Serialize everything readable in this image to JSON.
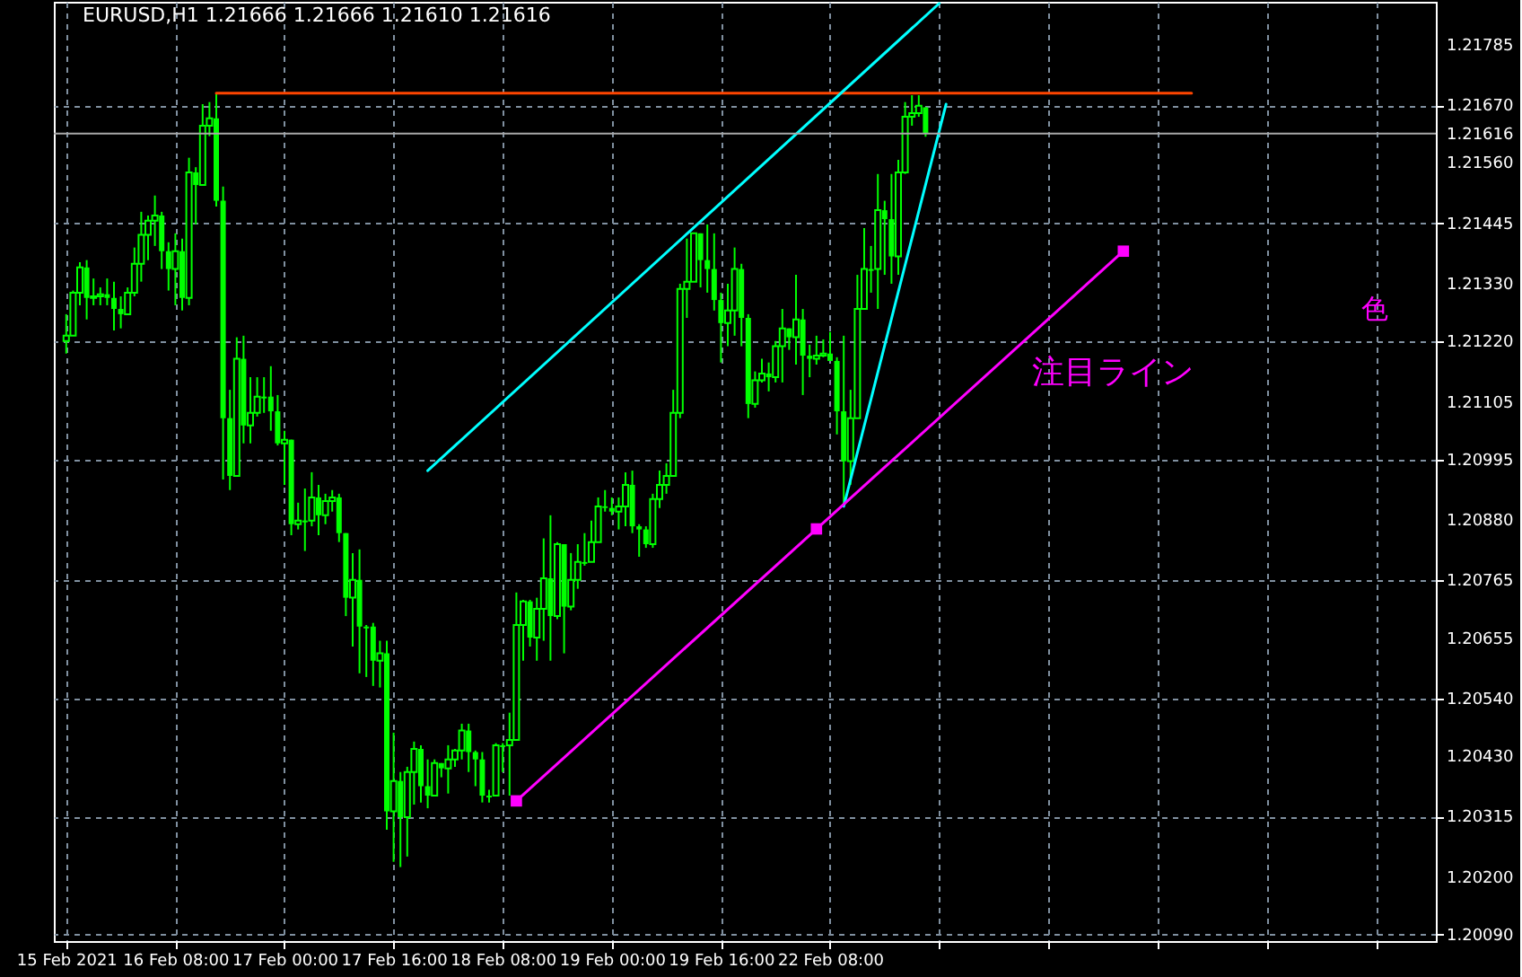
{
  "chart_data": {
    "type": "candlestick",
    "title": "EURUSD,H1  1.21666 1.21666 1.21610 1.21616",
    "color": "#00ff00",
    "categories": [
      "15 Feb 2021",
      null,
      null,
      null,
      null,
      null,
      null,
      null,
      null,
      null,
      null,
      null,
      null,
      null,
      null,
      null,
      "16 Feb 08:00",
      null,
      null,
      null,
      null,
      null,
      null,
      null,
      null,
      null,
      null,
      null,
      null,
      null,
      null,
      null,
      "17 Feb 00:00",
      null,
      null,
      null,
      null,
      null,
      null,
      null,
      null,
      null,
      null,
      null,
      null,
      null,
      null,
      null,
      "17 Feb 16:00",
      null,
      null,
      null,
      null,
      null,
      null,
      null,
      null,
      null,
      null,
      null,
      null,
      null,
      null,
      null,
      "18 Feb 08:00",
      null,
      null,
      null,
      null,
      null,
      null,
      null,
      null,
      null,
      null,
      null,
      null,
      null,
      null,
      null,
      "19 Feb 00:00",
      null,
      null,
      null,
      null,
      null,
      null,
      null,
      null,
      null,
      null,
      null,
      null,
      null,
      null,
      null,
      "19 Feb 16:00",
      null,
      null,
      null,
      null,
      null,
      null,
      null,
      null,
      null,
      null,
      null,
      null,
      null,
      null,
      null,
      "22 Feb 08:00",
      null,
      null,
      null,
      null,
      null,
      null,
      null,
      null,
      null,
      null,
      null,
      null,
      null,
      null,
      null,
      null,
      null,
      null,
      null,
      null,
      null,
      null,
      null,
      null,
      null,
      null,
      null,
      null,
      null,
      null,
      null,
      null,
      null,
      null,
      null,
      null,
      null,
      null,
      null,
      null,
      null,
      null,
      null,
      null,
      null,
      null,
      null,
      null,
      null,
      null,
      null,
      null,
      null,
      null,
      null,
      null,
      null,
      null,
      null,
      null,
      null,
      null,
      null,
      null,
      null,
      null,
      null,
      null,
      null,
      null,
      null,
      null,
      null,
      null,
      null,
      null,
      null,
      null,
      null,
      null,
      null,
      null,
      null,
      null,
      null,
      null,
      null
    ],
    "ohlc": [
      [
        1.21221,
        1.21272,
        1.21197,
        1.21231
      ],
      [
        1.21231,
        1.21317,
        1.21231,
        1.21313
      ],
      [
        1.21313,
        1.21371,
        1.21289,
        1.21361
      ],
      [
        1.21361,
        1.21375,
        1.21262,
        1.21303
      ],
      [
        1.21303,
        1.2134,
        1.21289,
        1.21306
      ],
      [
        1.21306,
        1.21323,
        1.21289,
        1.2131
      ],
      [
        1.2131,
        1.2134,
        1.21289,
        1.21303
      ],
      [
        1.21303,
        1.21334,
        1.21241,
        1.21282
      ],
      [
        1.21282,
        1.21306,
        1.21245,
        1.21272
      ],
      [
        1.21272,
        1.21323,
        1.21272,
        1.21313
      ],
      [
        1.21313,
        1.21399,
        1.21306,
        1.21368
      ],
      [
        1.21368,
        1.21467,
        1.21334,
        1.21423
      ],
      [
        1.21423,
        1.2146,
        1.21375,
        1.2145
      ],
      [
        1.2145,
        1.21498,
        1.21402,
        1.2146
      ],
      [
        1.2146,
        1.21467,
        1.21358,
        1.21392
      ],
      [
        1.21392,
        1.21409,
        1.21317,
        1.21358
      ],
      [
        1.21358,
        1.21426,
        1.21289,
        1.21392
      ],
      [
        1.21392,
        1.21416,
        1.21279,
        1.21303
      ],
      [
        1.21303,
        1.2157,
        1.21289,
        1.21542
      ],
      [
        1.21542,
        1.21552,
        1.21443,
        1.21518
      ],
      [
        1.21518,
        1.21672,
        1.21518,
        1.21631
      ],
      [
        1.21631,
        1.21676,
        1.21611,
        1.21645
      ],
      [
        1.21645,
        1.21693,
        1.21477,
        1.21488
      ],
      [
        1.21488,
        1.21515,
        1.20957,
        1.21074
      ],
      [
        1.21074,
        1.21128,
        1.20937,
        1.20964
      ],
      [
        1.20964,
        1.21228,
        1.20964,
        1.21187
      ],
      [
        1.21187,
        1.21231,
        1.21026,
        1.2106
      ],
      [
        1.2106,
        1.21152,
        1.21026,
        1.21084
      ],
      [
        1.21084,
        1.21152,
        1.21077,
        1.21115
      ],
      [
        1.21115,
        1.21152,
        1.21084,
        1.21115
      ],
      [
        1.21115,
        1.21173,
        1.2105,
        1.21087
      ],
      [
        1.21087,
        1.21118,
        1.21022,
        1.21026
      ],
      [
        1.21026,
        1.2105,
        1.20947,
        1.21033
      ],
      [
        1.21033,
        1.21033,
        1.20851,
        1.20872
      ],
      [
        1.20872,
        1.20913,
        1.20862,
        1.20879
      ],
      [
        1.20879,
        1.2094,
        1.20821,
        1.20879
      ],
      [
        1.20879,
        1.20971,
        1.20868,
        1.20923
      ],
      [
        1.20923,
        1.20947,
        1.20851,
        1.20889
      ],
      [
        1.20889,
        1.2093,
        1.20872,
        1.20916
      ],
      [
        1.20916,
        1.20937,
        1.20896,
        1.20923
      ],
      [
        1.20923,
        1.2093,
        1.20838,
        1.20855
      ],
      [
        1.20855,
        1.20855,
        1.20697,
        1.20732
      ],
      [
        1.20732,
        1.20817,
        1.20639,
        1.20766
      ],
      [
        1.20766,
        1.20824,
        1.20588,
        1.20677
      ],
      [
        1.20677,
        1.2068,
        1.20581,
        1.20677
      ],
      [
        1.20677,
        1.20684,
        1.20564,
        1.20612
      ],
      [
        1.20612,
        1.2065,
        1.20561,
        1.20626
      ],
      [
        1.20626,
        1.2065,
        1.2029,
        1.20325
      ],
      [
        1.20325,
        1.20475,
        1.20229,
        1.20383
      ],
      [
        1.20383,
        1.204,
        1.20219,
        1.20314
      ],
      [
        1.20314,
        1.2041,
        1.20239,
        1.204
      ],
      [
        1.204,
        1.20458,
        1.20338,
        1.20444
      ],
      [
        1.20444,
        1.20451,
        1.20342,
        1.20373
      ],
      [
        1.20373,
        1.20424,
        1.20331,
        1.20355
      ],
      [
        1.20355,
        1.20424,
        1.20355,
        1.20417
      ],
      [
        1.20417,
        1.20417,
        1.2039,
        1.20407
      ],
      [
        1.20407,
        1.20451,
        1.20359,
        1.20424
      ],
      [
        1.20424,
        1.20444,
        1.2041,
        1.20441
      ],
      [
        1.20441,
        1.20492,
        1.20424,
        1.20479
      ],
      [
        1.20479,
        1.20492,
        1.204,
        1.20438
      ],
      [
        1.20438,
        1.20441,
        1.20373,
        1.20424
      ],
      [
        1.20424,
        1.20438,
        1.20342,
        1.20355
      ],
      [
        1.20355,
        1.20366,
        1.20342,
        1.20355
      ],
      [
        1.20355,
        1.20455,
        1.20355,
        1.20451
      ],
      [
        1.20451,
        1.20455,
        1.204,
        1.20451
      ],
      [
        1.20451,
        1.20513,
        1.20355,
        1.20461
      ],
      [
        1.20461,
        1.20742,
        1.20461,
        1.2068
      ],
      [
        1.2068,
        1.20728,
        1.20612,
        1.20725
      ],
      [
        1.20725,
        1.20728,
        1.20639,
        1.20656
      ],
      [
        1.20656,
        1.20732,
        1.20612,
        1.20711
      ],
      [
        1.20711,
        1.20845,
        1.2065,
        1.20769
      ],
      [
        1.20769,
        1.20889,
        1.20612,
        1.20697
      ],
      [
        1.20697,
        1.20838,
        1.20691,
        1.20834
      ],
      [
        1.20834,
        1.20834,
        1.20626,
        1.20715
      ],
      [
        1.20715,
        1.20817,
        1.20708,
        1.20766
      ],
      [
        1.20766,
        1.20834,
        1.20749,
        1.208
      ],
      [
        1.208,
        1.20855,
        1.20793,
        1.208
      ],
      [
        1.208,
        1.20879,
        1.208,
        1.20838
      ],
      [
        1.20838,
        1.20923,
        1.20838,
        1.20906
      ],
      [
        1.20906,
        1.20937,
        1.20896,
        1.20903
      ],
      [
        1.20903,
        1.20923,
        1.20889,
        1.20896
      ],
      [
        1.20896,
        1.20923,
        1.20862,
        1.20906
      ],
      [
        1.20906,
        1.20971,
        1.20868,
        1.20947
      ],
      [
        1.20947,
        1.20974,
        1.20855,
        1.20868
      ],
      [
        1.20868,
        1.20872,
        1.2081,
        1.20862
      ],
      [
        1.20862,
        1.20868,
        1.20827,
        1.20834
      ],
      [
        1.20834,
        1.2093,
        1.20827,
        1.2092
      ],
      [
        1.2092,
        1.20974,
        1.20903,
        1.20947
      ],
      [
        1.20947,
        1.20988,
        1.2093,
        1.20964
      ],
      [
        1.20964,
        1.21128,
        1.20964,
        1.21084
      ],
      [
        1.21084,
        1.2133,
        1.21074,
        1.2132
      ],
      [
        1.2132,
        1.21416,
        1.21265,
        1.21334
      ],
      [
        1.21334,
        1.21426,
        1.21334,
        1.21426
      ],
      [
        1.21426,
        1.21426,
        1.21323,
        1.21375
      ],
      [
        1.21375,
        1.21443,
        1.21313,
        1.21358
      ],
      [
        1.21358,
        1.21426,
        1.21279,
        1.21299
      ],
      [
        1.21299,
        1.21313,
        1.2118,
        1.21255
      ],
      [
        1.21255,
        1.2133,
        1.21211,
        1.21279
      ],
      [
        1.21279,
        1.21399,
        1.21231,
        1.21358
      ],
      [
        1.21358,
        1.21368,
        1.21211,
        1.21265
      ],
      [
        1.21265,
        1.21272,
        1.21074,
        1.21101
      ],
      [
        1.21101,
        1.21163,
        1.21094,
        1.21146
      ],
      [
        1.21146,
        1.21187,
        1.21142,
        1.21159
      ],
      [
        1.21159,
        1.2118,
        1.21125,
        1.21152
      ],
      [
        1.21152,
        1.21221,
        1.21142,
        1.21211
      ],
      [
        1.21211,
        1.21282,
        1.21142,
        1.21245
      ],
      [
        1.21245,
        1.21245,
        1.21204,
        1.21228
      ],
      [
        1.21228,
        1.21347,
        1.21176,
        1.21262
      ],
      [
        1.21262,
        1.21282,
        1.21118,
        1.21193
      ],
      [
        1.21193,
        1.21214,
        1.21152,
        1.21187
      ],
      [
        1.21187,
        1.21231,
        1.21176,
        1.21193
      ],
      [
        1.21193,
        1.21224,
        1.2119,
        1.21197
      ],
      [
        1.21197,
        1.21238,
        1.21183,
        1.21183
      ],
      [
        1.21183,
        1.2119,
        1.21043,
        1.21087
      ],
      [
        1.21087,
        1.21231,
        1.20906,
        1.20992
      ],
      [
        1.20992,
        1.21128,
        1.20947,
        1.21074
      ],
      [
        1.21074,
        1.21347,
        1.21074,
        1.21282
      ],
      [
        1.21282,
        1.21436,
        1.21282,
        1.21358
      ],
      [
        1.21358,
        1.21402,
        1.21313,
        1.21358
      ],
      [
        1.21358,
        1.21539,
        1.21282,
        1.2147
      ],
      [
        1.2147,
        1.21488,
        1.21347,
        1.21453
      ],
      [
        1.21453,
        1.21539,
        1.2133,
        1.21382
      ],
      [
        1.21382,
        1.21566,
        1.21347,
        1.21542
      ],
      [
        1.21542,
        1.21676,
        1.21539,
        1.21648
      ],
      [
        1.21648,
        1.21689,
        1.21631,
        1.21655
      ],
      [
        1.21655,
        1.21689,
        1.21648,
        1.21669
      ],
      [
        1.21666,
        1.21666,
        1.2161,
        1.21616
      ],
      null,
      null,
      null,
      null,
      null,
      null,
      null,
      null,
      null,
      null,
      null,
      null,
      null,
      null,
      null,
      null,
      null,
      null,
      null,
      null,
      null,
      null,
      null,
      null,
      null,
      null,
      null,
      null,
      null,
      null,
      null,
      null,
      null,
      null,
      null,
      null,
      null,
      null,
      null,
      null,
      null,
      null,
      null,
      null,
      null,
      null,
      null,
      null,
      null,
      null,
      null,
      null,
      null,
      null,
      null,
      null,
      null,
      null,
      null,
      null,
      null,
      null,
      null,
      null,
      null,
      null,
      null,
      null,
      null,
      null,
      null,
      null,
      null
    ],
    "series": [
      {
        "type": "line",
        "color": "#ff4500",
        "marker": "none",
        "values": [
          null,
          null,
          null,
          null,
          null,
          null,
          null,
          null,
          null,
          null,
          null,
          null,
          null,
          null,
          null,
          null,
          null,
          null,
          null,
          null,
          null,
          null,
          1.21693,
          null,
          null,
          null,
          null,
          null,
          null,
          null,
          null,
          null,
          null,
          null,
          null,
          null,
          null,
          null,
          null,
          null,
          null,
          null,
          null,
          null,
          null,
          null,
          null,
          null,
          null,
          null,
          null,
          null,
          null,
          null,
          null,
          null,
          null,
          null,
          null,
          null,
          null,
          null,
          null,
          null,
          null,
          null,
          null,
          null,
          null,
          null,
          null,
          null,
          null,
          null,
          null,
          null,
          null,
          null,
          null,
          null,
          null,
          null,
          null,
          null,
          null,
          null,
          null,
          null,
          null,
          null,
          null,
          null,
          null,
          null,
          null,
          null,
          null,
          null,
          null,
          null,
          null,
          null,
          null,
          null,
          null,
          null,
          null,
          null,
          null,
          null,
          null,
          null,
          null,
          null,
          null,
          null,
          null,
          null,
          null,
          null,
          null,
          null,
          null,
          null,
          null,
          null,
          null,
          null,
          null,
          null,
          null,
          null,
          null,
          null,
          null,
          null,
          null,
          null,
          null,
          null,
          null,
          null,
          null,
          null,
          null,
          null,
          null,
          null,
          null,
          null,
          null,
          null,
          null,
          null,
          null,
          null,
          null,
          null,
          null,
          null,
          null,
          null,
          null,
          null,
          null,
          1.21693,
          null,
          null,
          null,
          null,
          null,
          null,
          null,
          null,
          null,
          null,
          null,
          null,
          null,
          null,
          null,
          null,
          null,
          null,
          null,
          null,
          null,
          null,
          null,
          null,
          null,
          null,
          null,
          null,
          null,
          null,
          null,
          null,
          null,
          null
        ]
      },
      {
        "type": "line",
        "color": "#00ffff",
        "marker": "none",
        "values": [
          null,
          null,
          null,
          null,
          null,
          null,
          null,
          null,
          null,
          null,
          null,
          null,
          null,
          null,
          null,
          null,
          null,
          null,
          null,
          null,
          null,
          null,
          null,
          null,
          null,
          null,
          null,
          null,
          null,
          null,
          null,
          null,
          null,
          null,
          null,
          null,
          null,
          null,
          null,
          null,
          null,
          null,
          null,
          null,
          null,
          null,
          null,
          null,
          null,
          null,
          null,
          null,
          null,
          1.20974,
          null,
          null,
          null,
          null,
          null,
          null,
          null,
          null,
          null,
          null,
          null,
          null,
          null,
          null,
          null,
          null,
          null,
          null,
          null,
          null,
          null,
          null,
          null,
          null,
          null,
          null,
          null,
          null,
          null,
          null,
          null,
          null,
          null,
          null,
          null,
          null,
          null,
          null,
          null,
          null,
          null,
          null,
          null,
          null,
          null,
          null,
          null,
          null,
          null,
          null,
          null,
          null,
          null,
          null,
          null,
          null,
          null,
          null,
          null,
          null,
          null,
          null,
          null,
          null,
          null,
          null,
          null,
          null,
          null,
          null,
          null,
          null,
          null,
          null,
          1.21864,
          null,
          null,
          null,
          null,
          null,
          null,
          null,
          null,
          null,
          null,
          null,
          null,
          null,
          null,
          null,
          null,
          null,
          null,
          null,
          null,
          null,
          null,
          null,
          null,
          null,
          null,
          null,
          null,
          null,
          null,
          null,
          null,
          null,
          null,
          null,
          null,
          null,
          null,
          null,
          null,
          null,
          null,
          null,
          null,
          null,
          null,
          null,
          null,
          null,
          null,
          null,
          null,
          null,
          null,
          null,
          null,
          null,
          null,
          null,
          null,
          null,
          null,
          null,
          null,
          null,
          null,
          null,
          null,
          null,
          null,
          null
        ]
      },
      {
        "type": "line",
        "color": "#00ffff",
        "marker": "none",
        "values": [
          null,
          null,
          null,
          null,
          null,
          null,
          null,
          null,
          null,
          null,
          null,
          null,
          null,
          null,
          null,
          null,
          null,
          null,
          null,
          null,
          null,
          null,
          null,
          null,
          null,
          null,
          null,
          null,
          null,
          null,
          null,
          null,
          null,
          null,
          null,
          null,
          null,
          null,
          null,
          null,
          null,
          null,
          null,
          null,
          null,
          null,
          null,
          null,
          null,
          null,
          null,
          null,
          null,
          null,
          null,
          null,
          null,
          null,
          null,
          null,
          null,
          null,
          null,
          null,
          null,
          null,
          null,
          null,
          null,
          null,
          null,
          null,
          null,
          null,
          null,
          null,
          null,
          null,
          null,
          null,
          null,
          null,
          null,
          null,
          null,
          null,
          null,
          null,
          null,
          null,
          null,
          null,
          null,
          null,
          null,
          null,
          null,
          null,
          null,
          null,
          null,
          null,
          null,
          null,
          null,
          null,
          null,
          null,
          null,
          null,
          null,
          null,
          null,
          null,
          1.20906,
          null,
          null,
          null,
          null,
          null,
          null,
          null,
          null,
          null,
          null,
          null,
          null,
          null,
          null,
          1.21672,
          null,
          null,
          null,
          null,
          null,
          null,
          null,
          null,
          null,
          null,
          null,
          null,
          null,
          null,
          null,
          null,
          null,
          null,
          null,
          null,
          null,
          null,
          null,
          null,
          null,
          null,
          null,
          null,
          null,
          null,
          null,
          null,
          null,
          null,
          null,
          null,
          null,
          null,
          null,
          null,
          null,
          null,
          null,
          null,
          null,
          null,
          null,
          null,
          null,
          null,
          null,
          null,
          null,
          null,
          null,
          null,
          null,
          null,
          null,
          null,
          null,
          null,
          null,
          null,
          null,
          null,
          null,
          null,
          null,
          null
        ]
      },
      {
        "type": "line",
        "color": "#ff00ff",
        "marker": "square",
        "values": [
          null,
          null,
          null,
          null,
          null,
          null,
          null,
          null,
          null,
          null,
          null,
          null,
          null,
          null,
          null,
          null,
          null,
          null,
          null,
          null,
          null,
          null,
          null,
          null,
          null,
          null,
          null,
          null,
          null,
          null,
          null,
          null,
          null,
          null,
          null,
          null,
          null,
          null,
          null,
          null,
          null,
          null,
          null,
          null,
          null,
          null,
          null,
          null,
          null,
          null,
          null,
          null,
          null,
          null,
          null,
          null,
          null,
          null,
          null,
          null,
          null,
          null,
          null,
          null,
          null,
          null,
          1.20345,
          null,
          null,
          null,
          null,
          null,
          null,
          null,
          null,
          null,
          null,
          null,
          null,
          null,
          null,
          null,
          null,
          null,
          null,
          null,
          null,
          null,
          null,
          null,
          null,
          null,
          null,
          null,
          null,
          null,
          null,
          null,
          null,
          null,
          null,
          null,
          null,
          null,
          null,
          null,
          null,
          null,
          null,
          null,
          1.20863,
          null,
          null,
          null,
          null,
          null,
          null,
          null,
          null,
          null,
          null,
          null,
          null,
          null,
          null,
          null,
          null,
          null,
          null,
          null,
          null,
          null,
          null,
          null,
          null,
          null,
          null,
          null,
          null,
          null,
          null,
          null,
          null,
          null,
          null,
          null,
          null,
          null,
          null,
          null,
          null,
          null,
          null,
          null,
          null,
          1.21392,
          null,
          null,
          null,
          null,
          null,
          null,
          null,
          null,
          null,
          null,
          null,
          null,
          null,
          null,
          null,
          null,
          null,
          null,
          null,
          null,
          null,
          null,
          null,
          null,
          null,
          null,
          null,
          null,
          null,
          null,
          null,
          null,
          null,
          null,
          null,
          null,
          null,
          null,
          null,
          null,
          null,
          null,
          null,
          null
        ]
      }
    ],
    "ylim": [
      1.20078,
      1.21867
    ],
    "yticks": [
      1.21785,
      {
        "value": 1.2167,
        "label": "1.21670"
      },
      {
        "value": 1.2156,
        "label": "1.21560"
      },
      1.21445,
      {
        "value": 1.2133,
        "label": "1.21330"
      },
      {
        "value": 1.2122,
        "label": "1.21220"
      },
      1.21105,
      1.20995,
      {
        "value": 1.2088,
        "label": "1.20880"
      },
      1.20765,
      1.20655,
      {
        "value": 1.2054,
        "label": "1.20540"
      },
      {
        "value": 1.2043,
        "label": "1.20430"
      },
      1.20315,
      {
        "value": 1.202,
        "label": "1.20200"
      },
      {
        "value": 1.2009,
        "label": "1.20090"
      }
    ],
    "ref_lines": [
      {
        "axis": "y",
        "value": 1.21616,
        "label": "1.21616",
        "color": "#a9a9a9"
      }
    ],
    "annotations": [
      "注目ライン",
      "色"
    ],
    "grid": true
  }
}
